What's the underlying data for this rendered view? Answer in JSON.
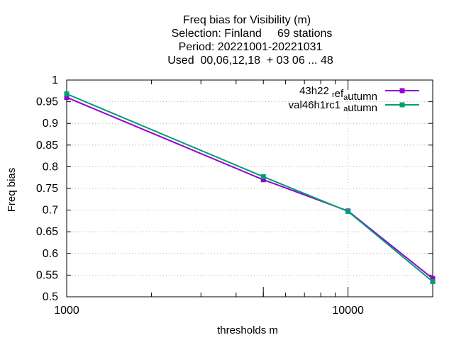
{
  "chart_data": {
    "type": "line",
    "title_lines": [
      "Freq bias  for Visibility (m)",
      "Selection: Finland     69 stations",
      "Period: 20221001-20221031",
      "Used  00,06,12,18  + 03 06 ... 48"
    ],
    "xlabel": "thresholds m",
    "ylabel": "Freq bias",
    "x_scale": "log",
    "xlim": [
      1000,
      20000
    ],
    "ylim": [
      0.5,
      1.0
    ],
    "x_ticks": [
      {
        "value": 1000,
        "label": "1000"
      },
      {
        "value": 10000,
        "label": "10000"
      }
    ],
    "y_ticks": [
      {
        "value": 0.5,
        "label": "0.5"
      },
      {
        "value": 0.55,
        "label": "0.55"
      },
      {
        "value": 0.6,
        "label": "0.6"
      },
      {
        "value": 0.65,
        "label": "0.65"
      },
      {
        "value": 0.7,
        "label": "0.7"
      },
      {
        "value": 0.75,
        "label": "0.75"
      },
      {
        "value": 0.8,
        "label": "0.8"
      },
      {
        "value": 0.85,
        "label": "0.85"
      },
      {
        "value": 0.9,
        "label": "0.9"
      },
      {
        "value": 0.95,
        "label": "0.95"
      },
      {
        "value": 1.0,
        "label": "1"
      }
    ],
    "grid": true,
    "legend_position": "top-right",
    "series": [
      {
        "name_main": "43h22",
        "name_parts": [
          {
            "t": "43h22 ",
            "sub": false
          },
          {
            "t": "r",
            "sub": true
          },
          {
            "t": "ef",
            "sub": false
          },
          {
            "t": "a",
            "sub": true
          },
          {
            "t": "utumn",
            "sub": false
          }
        ],
        "color": "#9400d3",
        "x": [
          1000,
          5000,
          10000,
          20000
        ],
        "y": [
          0.96,
          0.77,
          0.698,
          0.542
        ]
      },
      {
        "name_main": "val46h1rc1",
        "name_parts": [
          {
            "t": "val46h1rc1 ",
            "sub": false
          },
          {
            "t": "a",
            "sub": true
          },
          {
            "t": "utumn",
            "sub": false
          }
        ],
        "color": "#009e73",
        "x": [
          1000,
          5000,
          10000,
          20000
        ],
        "y": [
          0.968,
          0.777,
          0.697,
          0.535
        ]
      }
    ]
  }
}
